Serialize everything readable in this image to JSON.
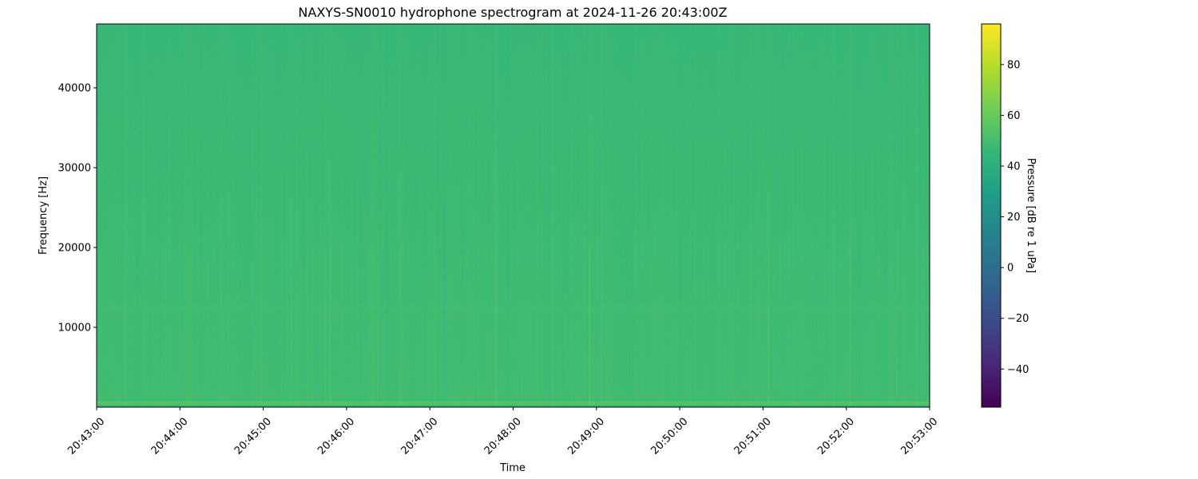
{
  "chart_data": {
    "type": "heatmap",
    "title": "NAXYS-SN0010 hydrophone spectrogram at 2024-11-26 20:43:00Z",
    "xlabel": "Time",
    "ylabel": "Frequency [Hz]",
    "x_ticks": [
      "20:43:00",
      "20:44:00",
      "20:45:00",
      "20:46:00",
      "20:47:00",
      "20:48:00",
      "20:49:00",
      "20:50:00",
      "20:51:00",
      "20:52:00",
      "20:53:00"
    ],
    "y_ticks": [
      10000,
      20000,
      30000,
      40000
    ],
    "ylim": [
      0,
      48000
    ],
    "colorbar": {
      "label": "Pressure [dB re 1 uPa]",
      "colormap": "viridis",
      "range": [
        -55,
        96
      ],
      "ticks": [
        -40,
        -20,
        0,
        20,
        40,
        60,
        80
      ]
    },
    "typical_level_db": 47,
    "low_frequency_band_level_db": 55,
    "grid": false
  }
}
